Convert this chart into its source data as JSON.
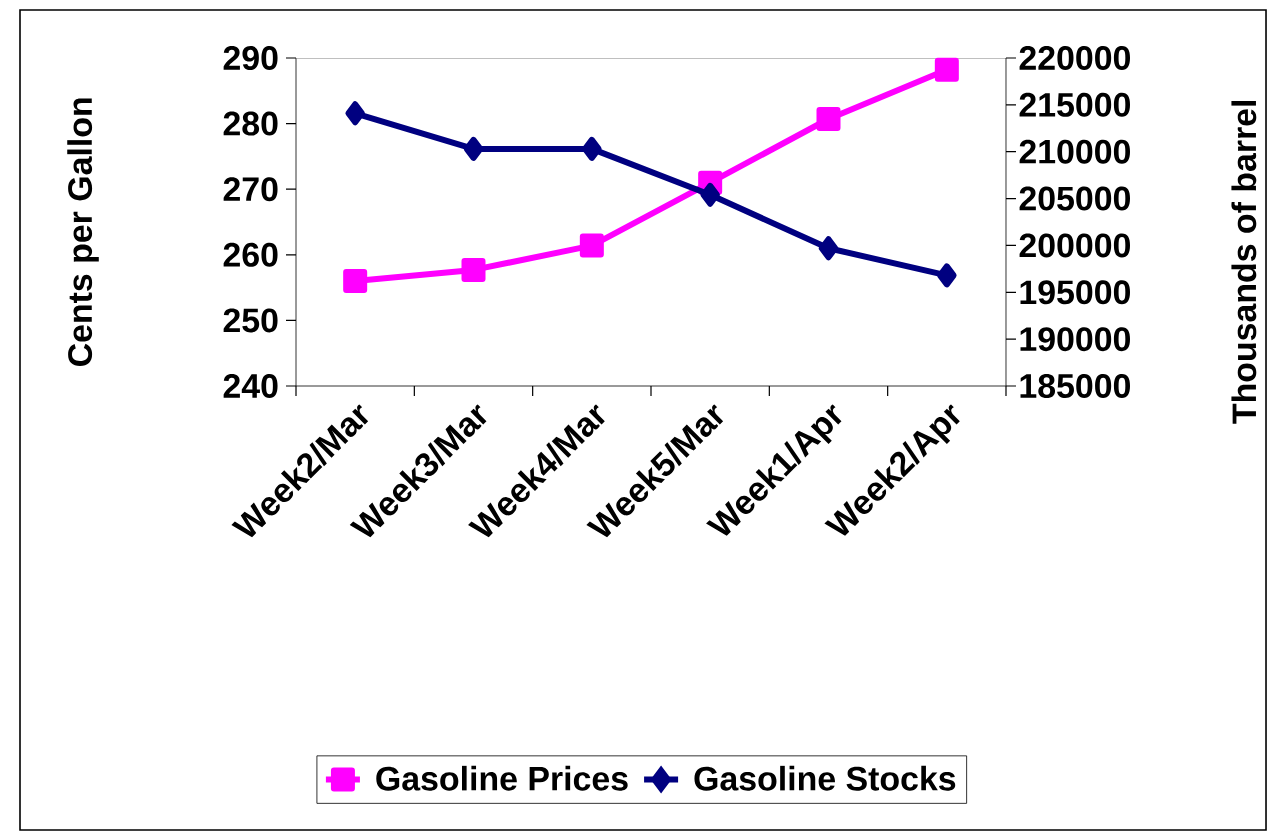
{
  "chart_data": {
    "type": "line",
    "categories": [
      "Week2/Mar",
      "Week3/Mar",
      "Week4/Mar",
      "Week5/Mar",
      "Week1/Apr",
      "Week2/Apr"
    ],
    "series": [
      {
        "name": "Gasoline Prices",
        "color": "#ff00ff",
        "marker": "square",
        "values": [
          256,
          257.7,
          261.4,
          271,
          280.7,
          288.2
        ]
      },
      {
        "name": "Gasoline Stocks",
        "color": "#000080",
        "marker": "diamond",
        "axis": "y2",
        "values": [
          214100,
          210300,
          210300,
          205400,
          199700,
          196800
        ]
      }
    ],
    "ylabel": "Cents per Gallon",
    "y2label": "Thousands of barrel",
    "ylim": [
      240,
      290
    ],
    "yticks": [
      240,
      250,
      260,
      270,
      280,
      290
    ],
    "y2lim": [
      185000,
      220000
    ],
    "y2ticks": [
      185000,
      190000,
      195000,
      200000,
      205000,
      210000,
      215000,
      220000
    ],
    "grid": false,
    "legend": "bottom"
  }
}
